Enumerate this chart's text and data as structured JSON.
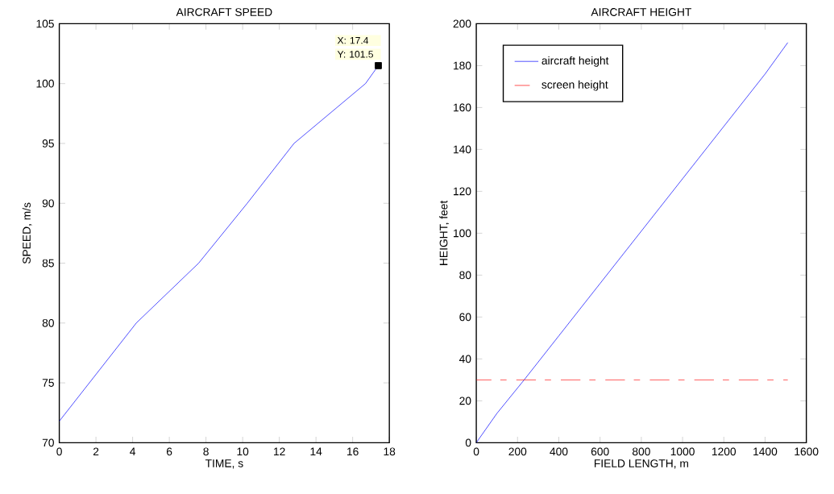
{
  "chart_data": [
    {
      "type": "line",
      "title": "AIRCRAFT SPEED",
      "xlabel": "TIME, s",
      "ylabel": "SPEED, m/s",
      "xlim": [
        0,
        18
      ],
      "ylim": [
        70,
        105
      ],
      "xticks": [
        0,
        2,
        4,
        6,
        8,
        10,
        12,
        14,
        16,
        18
      ],
      "yticks": [
        70,
        75,
        80,
        85,
        90,
        95,
        100,
        105
      ],
      "x": [
        0,
        4.2,
        7.6,
        10.25,
        12.8,
        16.7,
        17.4
      ],
      "series": [
        {
          "color": "#0000ff",
          "values": [
            71.8,
            80,
            85,
            90,
            95,
            100,
            101.5
          ]
        }
      ],
      "annotations": [
        {
          "text": "X: 17.4",
          "x": 17.4,
          "y": 101.5
        },
        {
          "text": "Y: 101.5",
          "x": 17.4,
          "y": 101.5
        }
      ],
      "grid": false,
      "legend": false
    },
    {
      "type": "line",
      "title": "AIRCRAFT HEIGHT",
      "xlabel": "FIELD LENGTH, m",
      "ylabel": "HEIGHT, feet",
      "xlim": [
        0,
        1600
      ],
      "ylim": [
        0,
        200
      ],
      "xticks": [
        0,
        200,
        400,
        600,
        800,
        1000,
        1200,
        1400,
        1600
      ],
      "yticks": [
        0,
        20,
        40,
        60,
        80,
        100,
        120,
        140,
        160,
        180,
        200
      ],
      "series": [
        {
          "name": "aircraft height",
          "color": "#0000ff",
          "x": [
            0,
            100,
            232,
            400,
            600,
            800,
            1000,
            1200,
            1400,
            1510
          ],
          "values": [
            0,
            14,
            30,
            51,
            76,
            101,
            126,
            151,
            176,
            191
          ]
        },
        {
          "name": "screen height",
          "color": "#ff0000",
          "line_style": "dashed",
          "x": [
            0,
            1510
          ],
          "values": [
            30,
            30
          ]
        }
      ],
      "grid": false,
      "legend": "top left"
    }
  ]
}
